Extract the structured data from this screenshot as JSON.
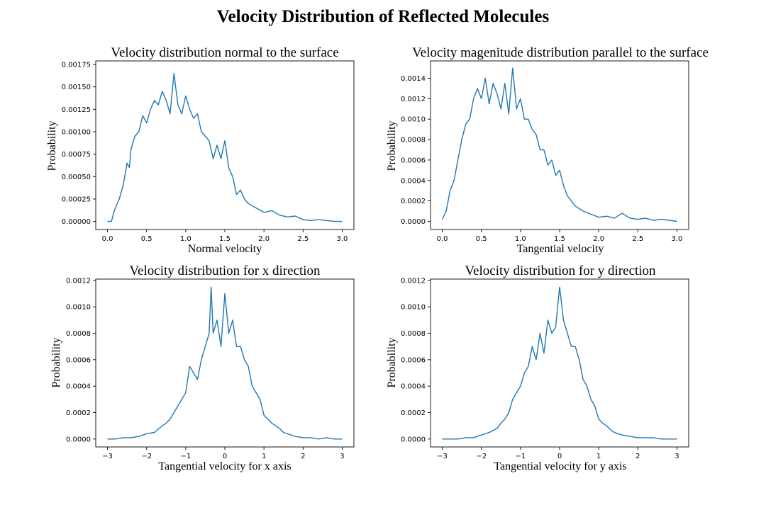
{
  "figure": {
    "title": "Velocity Distribution of Reflected Molecules"
  },
  "colors": {
    "series": "#1f77b4"
  },
  "chart_data": [
    {
      "type": "line",
      "title": "Velocity distribution normal to the surface",
      "xlabel": "Normal velocity",
      "ylabel": "Probability",
      "xlim": [
        -0.15,
        3.15
      ],
      "ylim": [
        -9e-05,
        0.00179
      ],
      "xticks": [
        0.0,
        0.5,
        1.0,
        1.5,
        2.0,
        2.5,
        3.0
      ],
      "xtick_labels": [
        "0.0",
        "0.5",
        "1.0",
        "1.5",
        "2.0",
        "2.5",
        "3.0"
      ],
      "yticks": [
        0,
        0.00025,
        0.0005,
        0.00075,
        0.001,
        0.00125,
        0.0015,
        0.00175
      ],
      "ytick_labels": [
        "0.00000",
        "0.00025",
        "0.00050",
        "0.00075",
        "0.00100",
        "0.00125",
        "0.00150",
        "0.00175"
      ],
      "x": [
        0.0,
        0.05,
        0.08,
        0.1,
        0.15,
        0.2,
        0.25,
        0.28,
        0.3,
        0.35,
        0.4,
        0.45,
        0.5,
        0.55,
        0.6,
        0.65,
        0.7,
        0.75,
        0.8,
        0.85,
        0.9,
        0.95,
        1.0,
        1.05,
        1.1,
        1.15,
        1.2,
        1.25,
        1.3,
        1.35,
        1.4,
        1.45,
        1.5,
        1.55,
        1.6,
        1.65,
        1.7,
        1.75,
        1.8,
        1.9,
        2.0,
        2.1,
        2.2,
        2.3,
        2.4,
        2.5,
        2.6,
        2.7,
        2.8,
        2.9,
        3.0
      ],
      "y": [
        0.0,
        0.0,
        0.0001,
        0.00015,
        0.00025,
        0.0004,
        0.00065,
        0.0006,
        0.0008,
        0.00095,
        0.001,
        0.00118,
        0.0011,
        0.00125,
        0.00135,
        0.0013,
        0.00145,
        0.00135,
        0.0012,
        0.00165,
        0.0013,
        0.0012,
        0.0014,
        0.00125,
        0.00115,
        0.0012,
        0.001,
        0.00095,
        0.0009,
        0.0007,
        0.00085,
        0.0007,
        0.0009,
        0.0006,
        0.0005,
        0.0003,
        0.00035,
        0.00025,
        0.0002,
        0.00015,
        0.0001,
        0.00012,
        7e-05,
        5e-05,
        6e-05,
        2e-05,
        1e-05,
        2e-05,
        1e-05,
        0.0,
        0.0
      ]
    },
    {
      "type": "line",
      "title": "Velocity magenitude distribution parallel to the surface",
      "xlabel": "Tangential velocity",
      "ylabel": "Probability",
      "xlim": [
        -0.15,
        3.15
      ],
      "ylim": [
        -8e-05,
        0.00157
      ],
      "xticks": [
        0.0,
        0.5,
        1.0,
        1.5,
        2.0,
        2.5,
        3.0
      ],
      "xtick_labels": [
        "0.0",
        "0.5",
        "1.0",
        "1.5",
        "2.0",
        "2.5",
        "3.0"
      ],
      "yticks": [
        0,
        0.0002,
        0.0004,
        0.0006,
        0.0008,
        0.001,
        0.0012,
        0.0014
      ],
      "ytick_labels": [
        "0.0000",
        "0.0002",
        "0.0004",
        "0.0006",
        "0.0008",
        "0.0010",
        "0.0012",
        "0.0014"
      ],
      "x": [
        0.0,
        0.05,
        0.1,
        0.15,
        0.2,
        0.25,
        0.3,
        0.35,
        0.4,
        0.45,
        0.5,
        0.55,
        0.6,
        0.65,
        0.7,
        0.75,
        0.8,
        0.85,
        0.9,
        0.95,
        1.0,
        1.05,
        1.1,
        1.15,
        1.2,
        1.25,
        1.3,
        1.35,
        1.4,
        1.45,
        1.5,
        1.55,
        1.6,
        1.65,
        1.7,
        1.8,
        1.9,
        2.0,
        2.1,
        2.2,
        2.3,
        2.4,
        2.5,
        2.6,
        2.7,
        2.8,
        2.9,
        3.0
      ],
      "y": [
        2e-05,
        0.0001,
        0.0003,
        0.0004,
        0.0006,
        0.0008,
        0.00095,
        0.001,
        0.0012,
        0.0013,
        0.0012,
        0.0014,
        0.00115,
        0.00135,
        0.00125,
        0.0011,
        0.00135,
        0.00105,
        0.0015,
        0.0011,
        0.0012,
        0.001,
        0.001,
        0.0009,
        0.00085,
        0.0007,
        0.0007,
        0.00055,
        0.0006,
        0.00045,
        0.0005,
        0.00035,
        0.00025,
        0.0002,
        0.00015,
        0.0001,
        7e-05,
        4e-05,
        5e-05,
        3e-05,
        8e-05,
        3e-05,
        2e-05,
        3e-05,
        1e-05,
        2e-05,
        1e-05,
        0.0
      ]
    },
    {
      "type": "line",
      "title": "Velocity distribution for x direction",
      "xlabel": "Tangential velocity for x axis",
      "ylabel": "Probability",
      "xlim": [
        -3.3,
        3.3
      ],
      "ylim": [
        -6e-05,
        0.00121
      ],
      "xticks": [
        -3,
        -2,
        -1,
        0,
        1,
        2,
        3
      ],
      "xtick_labels": [
        "−3",
        "−2",
        "−1",
        "0",
        "1",
        "2",
        "3"
      ],
      "yticks": [
        0,
        0.0002,
        0.0004,
        0.0006,
        0.0008,
        0.001,
        0.0012
      ],
      "ytick_labels": [
        "0.0000",
        "0.0002",
        "0.0004",
        "0.0006",
        "0.0008",
        "0.0010",
        "0.0012"
      ],
      "x": [
        -3.0,
        -2.8,
        -2.6,
        -2.4,
        -2.2,
        -2.0,
        -1.8,
        -1.6,
        -1.5,
        -1.4,
        -1.3,
        -1.2,
        -1.1,
        -1.0,
        -0.9,
        -0.8,
        -0.7,
        -0.6,
        -0.5,
        -0.4,
        -0.35,
        -0.3,
        -0.2,
        -0.1,
        0.0,
        0.1,
        0.2,
        0.3,
        0.4,
        0.5,
        0.6,
        0.7,
        0.8,
        0.9,
        1.0,
        1.1,
        1.2,
        1.3,
        1.4,
        1.5,
        1.6,
        1.8,
        2.0,
        2.2,
        2.4,
        2.6,
        2.8,
        3.0
      ],
      "y": [
        0.0,
        0.0,
        1e-05,
        1e-05,
        2e-05,
        4e-05,
        5e-05,
        0.0001,
        0.00012,
        0.00015,
        0.0002,
        0.00025,
        0.0003,
        0.00035,
        0.00055,
        0.0005,
        0.00045,
        0.0006,
        0.0007,
        0.0008,
        0.00115,
        0.0008,
        0.0009,
        0.0007,
        0.0011,
        0.0008,
        0.0009,
        0.0007,
        0.0007,
        0.0006,
        0.00055,
        0.0004,
        0.00035,
        0.0003,
        0.00018,
        0.00015,
        0.00012,
        0.0001,
        8e-05,
        5e-05,
        4e-05,
        2e-05,
        1e-05,
        1e-05,
        0.0,
        1e-05,
        0.0,
        0.0
      ]
    },
    {
      "type": "line",
      "title": "Velocity distribution for y direction",
      "xlabel": "Tangential velocity for y axis",
      "ylabel": "Probability",
      "xlim": [
        -3.3,
        3.3
      ],
      "ylim": [
        -6e-05,
        0.00121
      ],
      "xticks": [
        -3,
        -2,
        -1,
        0,
        1,
        2,
        3
      ],
      "xtick_labels": [
        "−3",
        "−2",
        "−1",
        "0",
        "1",
        "2",
        "3"
      ],
      "yticks": [
        0,
        0.0002,
        0.0004,
        0.0006,
        0.0008,
        0.001,
        0.0012
      ],
      "ytick_labels": [
        "0.0000",
        "0.0002",
        "0.0004",
        "0.0006",
        "0.0008",
        "0.0010",
        "0.0012"
      ],
      "x": [
        -3.0,
        -2.8,
        -2.6,
        -2.4,
        -2.2,
        -2.0,
        -1.8,
        -1.6,
        -1.5,
        -1.4,
        -1.3,
        -1.2,
        -1.1,
        -1.0,
        -0.9,
        -0.8,
        -0.7,
        -0.6,
        -0.5,
        -0.4,
        -0.3,
        -0.2,
        -0.1,
        0.0,
        0.1,
        0.2,
        0.3,
        0.4,
        0.5,
        0.6,
        0.7,
        0.8,
        0.9,
        1.0,
        1.1,
        1.2,
        1.3,
        1.4,
        1.5,
        1.6,
        1.8,
        2.0,
        2.2,
        2.4,
        2.6,
        2.8,
        3.0
      ],
      "y": [
        0.0,
        0.0,
        0.0,
        1e-05,
        1e-05,
        3e-05,
        5e-05,
        8e-05,
        0.00012,
        0.00015,
        0.0002,
        0.0003,
        0.00035,
        0.0004,
        0.0005,
        0.00055,
        0.0007,
        0.0006,
        0.0008,
        0.00065,
        0.0009,
        0.0008,
        0.00085,
        0.00115,
        0.0009,
        0.0008,
        0.0007,
        0.0007,
        0.0006,
        0.00045,
        0.0004,
        0.0003,
        0.00025,
        0.00015,
        0.00012,
        0.0001,
        7e-05,
        5e-05,
        4e-05,
        3e-05,
        2e-05,
        1e-05,
        1e-05,
        1e-05,
        0.0,
        0.0,
        0.0
      ]
    }
  ]
}
